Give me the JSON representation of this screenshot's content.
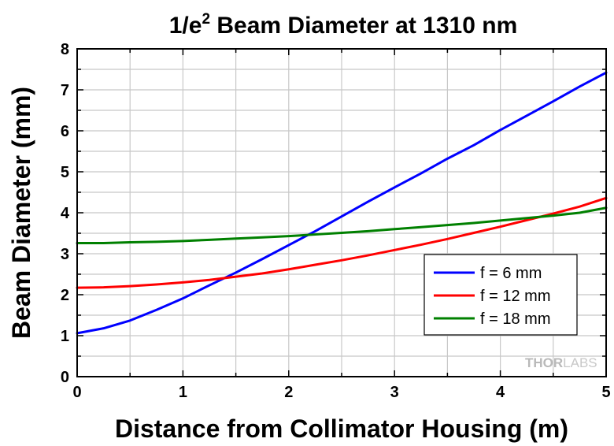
{
  "chart_data": {
    "type": "line",
    "title": {
      "prefix": "1/e",
      "superscript": "2",
      "suffix": " Beam Diameter at 1310 nm"
    },
    "xlabel": "Distance from Collimator Housing (m)",
    "ylabel": "Beam Diameter (mm)",
    "xlim": [
      0,
      5
    ],
    "ylim": [
      0,
      8
    ],
    "xticks": [
      "0",
      "1",
      "2",
      "3",
      "4",
      "5"
    ],
    "yticks": [
      "0",
      "1",
      "2",
      "3",
      "4",
      "5",
      "6",
      "7",
      "8"
    ],
    "grid": true,
    "legend_position": "lower-right",
    "x": [
      0,
      0.25,
      0.5,
      0.75,
      1.0,
      1.25,
      1.5,
      1.75,
      2.0,
      2.25,
      2.5,
      2.75,
      3.0,
      3.25,
      3.5,
      3.75,
      4.0,
      4.25,
      4.5,
      4.75,
      5.0
    ],
    "series": [
      {
        "name": "f = 6 mm",
        "color": "#0000ff",
        "values": [
          1.06,
          1.18,
          1.37,
          1.63,
          1.91,
          2.23,
          2.54,
          2.87,
          3.21,
          3.55,
          3.91,
          4.27,
          4.62,
          4.96,
          5.32,
          5.65,
          6.02,
          6.37,
          6.72,
          7.08,
          7.42
        ]
      },
      {
        "name": "f = 12 mm",
        "color": "#ff0000",
        "values": [
          2.17,
          2.18,
          2.21,
          2.25,
          2.3,
          2.36,
          2.44,
          2.52,
          2.62,
          2.73,
          2.84,
          2.96,
          3.09,
          3.22,
          3.36,
          3.51,
          3.66,
          3.82,
          3.98,
          4.15,
          4.36
        ]
      },
      {
        "name": "f = 18 mm",
        "color": "#008000",
        "values": [
          3.26,
          3.26,
          3.28,
          3.29,
          3.31,
          3.34,
          3.37,
          3.4,
          3.43,
          3.47,
          3.51,
          3.55,
          3.6,
          3.65,
          3.7,
          3.75,
          3.81,
          3.87,
          3.93,
          4.0,
          4.12
        ]
      }
    ]
  },
  "watermark": {
    "brand_bold": "THOR",
    "brand_light": "LABS"
  }
}
